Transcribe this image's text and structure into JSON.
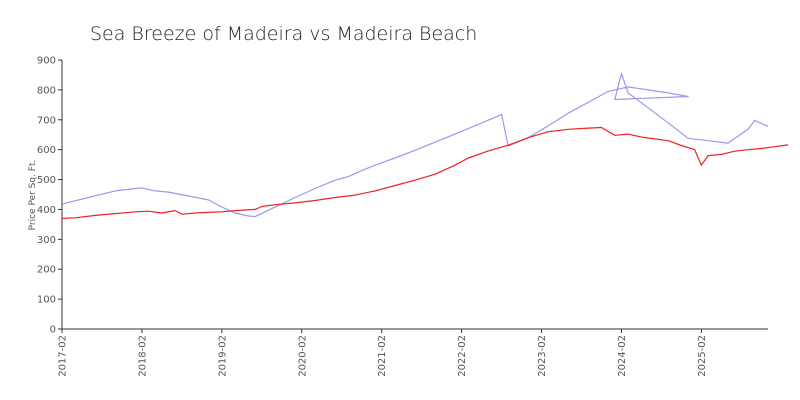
{
  "chart_data": {
    "type": "line",
    "title": "Sea Breeze of Madeira vs Madeira Beach",
    "xlabel": "",
    "ylabel": "Price Per Sq. Ft.",
    "ylim": [
      0,
      900
    ],
    "xlim": [
      "2017-02",
      "2025-12"
    ],
    "yticks": [
      "0",
      "100",
      "200",
      "300",
      "400",
      "500",
      "600",
      "700",
      "800",
      "900"
    ],
    "xticks": [
      "2017-02",
      "2018-02",
      "2019-02",
      "2020-02",
      "2021-02",
      "2022-02",
      "2023-02",
      "2024-02",
      "2025-02"
    ],
    "grid": false,
    "legend": "none",
    "series": [
      {
        "color": "#9999ee",
        "points": [
          [
            "2017-02",
            418
          ],
          [
            "2017-06",
            440
          ],
          [
            "2017-10",
            462
          ],
          [
            "2018-01",
            470
          ],
          [
            "2018-02",
            472
          ],
          [
            "2018-04",
            462
          ],
          [
            "2018-06",
            458
          ],
          [
            "2018-09",
            445
          ],
          [
            "2018-12",
            432
          ],
          [
            "2019-02",
            408
          ],
          [
            "2019-04",
            388
          ],
          [
            "2019-06",
            378
          ],
          [
            "2019-07",
            376
          ],
          [
            "2019-10",
            408
          ],
          [
            "2020-01",
            440
          ],
          [
            "2020-04",
            470
          ],
          [
            "2020-07",
            498
          ],
          [
            "2020-09",
            510
          ],
          [
            "2020-11",
            530
          ],
          [
            "2021-01",
            548
          ],
          [
            "2021-04",
            572
          ],
          [
            "2021-07",
            598
          ],
          [
            "2021-10",
            625
          ],
          [
            "2022-01",
            652
          ],
          [
            "2022-04",
            680
          ],
          [
            "2022-07",
            708
          ],
          [
            "2022-08",
            718
          ],
          [
            "2022-09",
            612
          ],
          [
            "2022-12",
            640
          ],
          [
            "2023-03",
            680
          ],
          [
            "2023-06",
            722
          ],
          [
            "2023-09",
            758
          ],
          [
            "2023-12",
            795
          ],
          [
            "2024-03",
            810
          ],
          [
            "2024-06",
            800
          ],
          [
            "2024-09",
            790
          ],
          [
            "2024-12",
            778
          ],
          [
            "2024-01",
            768
          ],
          [
            "2024-02",
            855
          ],
          [
            "2024-03",
            790
          ],
          [
            "2024-06",
            740
          ],
          [
            "2024-09",
            690
          ],
          [
            "2024-12",
            638
          ],
          [
            "2025-03",
            630
          ],
          [
            "2025-06",
            622
          ],
          [
            "2025-09",
            668
          ],
          [
            "2025-10",
            698
          ],
          [
            "2025-12",
            678
          ]
        ]
      },
      {
        "color": "#ee2222",
        "points": [
          [
            "2017-02",
            370
          ],
          [
            "2017-04",
            372
          ],
          [
            "2017-07",
            380
          ],
          [
            "2017-10",
            386
          ],
          [
            "2018-01",
            392
          ],
          [
            "2018-03",
            394
          ],
          [
            "2018-05",
            388
          ],
          [
            "2018-07",
            396
          ],
          [
            "2018-08",
            384
          ],
          [
            "2018-10",
            388
          ],
          [
            "2018-12",
            390
          ],
          [
            "2019-02",
            392
          ],
          [
            "2019-04",
            396
          ],
          [
            "2019-07",
            400
          ],
          [
            "2019-08",
            410
          ],
          [
            "2019-10",
            416
          ],
          [
            "2020-01",
            422
          ],
          [
            "2020-04",
            430
          ],
          [
            "2020-07",
            440
          ],
          [
            "2020-10",
            448
          ],
          [
            "2021-01",
            462
          ],
          [
            "2021-04",
            480
          ],
          [
            "2021-07",
            498
          ],
          [
            "2021-10",
            518
          ],
          [
            "2022-01",
            548
          ],
          [
            "2022-03",
            572
          ],
          [
            "2022-06",
            596
          ],
          [
            "2022-09",
            615
          ],
          [
            "2022-12",
            640
          ],
          [
            "2023-03",
            660
          ],
          [
            "2023-06",
            668
          ],
          [
            "2023-09",
            672
          ],
          [
            "2023-11",
            674
          ],
          [
            "2024-01",
            648
          ],
          [
            "2024-03",
            652
          ],
          [
            "2024-05",
            642
          ],
          [
            "2024-07",
            636
          ],
          [
            "2024-09",
            630
          ],
          [
            "2024-11",
            614
          ],
          [
            "2025-01",
            600
          ],
          [
            "2025-02",
            548
          ],
          [
            "2025-03",
            580
          ],
          [
            "2025-05",
            584
          ],
          [
            "2025-07",
            595
          ],
          [
            "2025-09",
            600
          ],
          [
            "2025-11",
            604
          ],
          [
            "2026-01",
            610
          ],
          [
            "2026-03",
            616
          ]
        ]
      }
    ]
  }
}
